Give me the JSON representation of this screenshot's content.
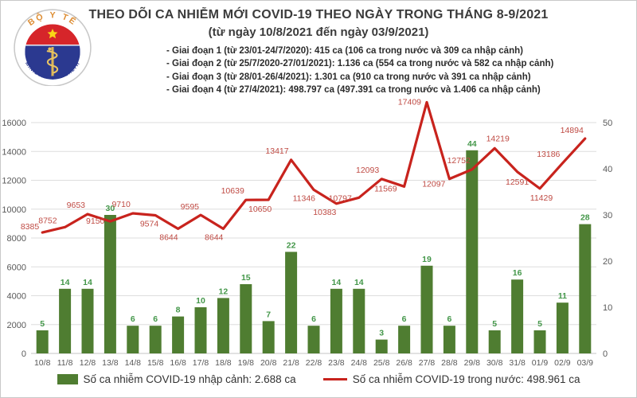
{
  "header": {
    "title": "THEO DÕI CA NHIỄM MỚI COVID-19 THEO NGÀY TRONG THÁNG 8-9/2021",
    "subtitle": "(từ ngày 10/8/2021 đến ngày 03/9/2021)",
    "stages": [
      "- Giai đoạn 1 (từ 23/01-24/7/2020): 415 ca (106 ca trong nước và 309 ca nhập cảnh)",
      "- Giai đoạn 2 (từ 25/7/2020-27/01/2021): 1.136 ca (554 ca trong nước và 582 ca nhập cảnh)",
      "- Giai đoạn 3 (từ 28/01-26/4/2021): 1.301 ca (910 ca trong nước và 391 ca nhập cảnh)",
      "- Giai đoạn 4 (từ 27/4/2021): 498.797 ca (497.391 ca trong nước và 1.406 ca nhập cảnh)"
    ]
  },
  "logo": {
    "top_text": "BỘ Y TẾ",
    "bottom_text": "MINISTRY OF HEALTH"
  },
  "legend": {
    "bars_label": "Số ca nhiễm COVID-19 nhập cảnh: 2.688 ca",
    "line_label": "Số ca nhiễm COVID-19 trong nước: 498.961 ca"
  },
  "chart_data": {
    "type": "bar+line combo",
    "categories": [
      "10/8",
      "11/8",
      "12/8",
      "13/8",
      "14/8",
      "15/8",
      "16/8",
      "17/8",
      "18/8",
      "19/8",
      "20/8",
      "21/8",
      "22/8",
      "23/8",
      "24/8",
      "25/8",
      "26/8",
      "27/8",
      "28/8",
      "29/8",
      "30/8",
      "31/8",
      "01/9",
      "02/9",
      "03/9"
    ],
    "series": [
      {
        "name": "Số ca nhiễm COVID-19 nhập cảnh",
        "type": "bar",
        "axis": "right",
        "color": "#4f7d31",
        "values": [
          5,
          14,
          14,
          30,
          6,
          6,
          8,
          10,
          12,
          15,
          7,
          22,
          6,
          14,
          14,
          3,
          6,
          19,
          6,
          44,
          5,
          16,
          5,
          11,
          28
        ]
      },
      {
        "name": "Số ca nhiễm COVID-19 trong nước",
        "type": "line",
        "axis": "left",
        "color": "#c8231d",
        "values": [
          8385,
          8752,
          9653,
          9150,
          9710,
          9574,
          8644,
          9595,
          8644,
          10639,
          10650,
          13417,
          11346,
          10383,
          10797,
          12093,
          11569,
          17409,
          12097,
          12752,
          14219,
          12591,
          11429,
          13186,
          14894
        ]
      }
    ],
    "left_axis": {
      "min": 0,
      "max": 16000,
      "step": 2000,
      "ticks": [
        0,
        2000,
        4000,
        6000,
        8000,
        10000,
        12000,
        14000,
        16000
      ]
    },
    "right_axis": {
      "min": 0,
      "max": 50,
      "step": 10,
      "ticks": [
        0,
        10,
        20,
        30,
        40,
        50
      ]
    },
    "grid": true,
    "legend_position": "bottom",
    "title": "THEO DÕI CA NHIỄM MỚI COVID-19 THEO NGÀY TRONG THÁNG 8-9/2021"
  },
  "colors": {
    "bar_fill": "#4f7d31",
    "bar_label": "#44974a",
    "line_stroke": "#c8231d",
    "line_label": "#bf4a43",
    "axis_text": "#595959",
    "gridline": "#dedede",
    "title_text": "#3b3b3b"
  }
}
